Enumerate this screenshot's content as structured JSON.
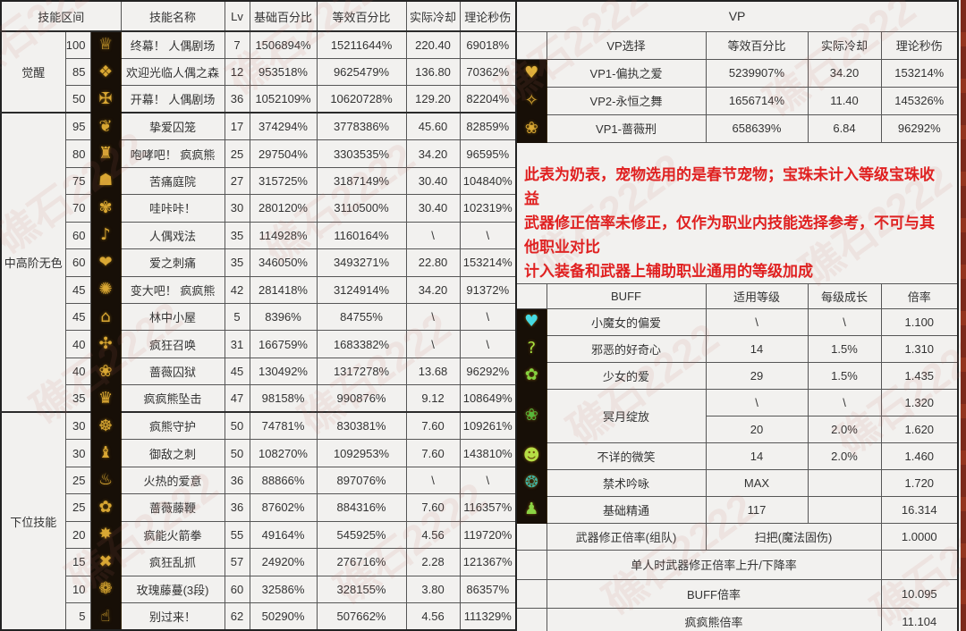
{
  "colors": {
    "accent_red": "#e02020",
    "icon_gold": "#d9a733",
    "table_line": "#565656",
    "icon_bg": "#170f07",
    "edge_watermark_red": "#7c2a1c"
  },
  "watermark": {
    "text": "礁石2222"
  },
  "left_table": {
    "headers": [
      "技能区间",
      "技能名称",
      "Lv",
      "基础百分比",
      "等效百分比",
      "实际冷却",
      "理论秒伤"
    ],
    "groups": [
      {
        "label": "觉醒",
        "rows": [
          {
            "range": "100",
            "icon": "♕",
            "name": "终幕！ 人偶剧场",
            "lv": "7",
            "base": "1506894%",
            "equiv": "15211644%",
            "cd": "220.40",
            "dps": "69018%"
          },
          {
            "range": "85",
            "icon": "❖",
            "name": "欢迎光临人偶之森",
            "lv": "12",
            "base": "953518%",
            "equiv": "9625479%",
            "cd": "136.80",
            "dps": "70362%"
          },
          {
            "range": "50",
            "icon": "✠",
            "name": "开幕！ 人偶剧场",
            "lv": "36",
            "base": "1052109%",
            "equiv": "10620728%",
            "cd": "129.20",
            "dps": "82204%"
          }
        ]
      },
      {
        "label": "中高阶无色",
        "rows": [
          {
            "range": "95",
            "icon": "❦",
            "name": "挚爱囚笼",
            "lv": "17",
            "base": "374294%",
            "equiv": "3778386%",
            "cd": "45.60",
            "dps": "82859%"
          },
          {
            "range": "80",
            "icon": "♜",
            "name": "咆哮吧！ 疯疯熊",
            "lv": "25",
            "base": "297504%",
            "equiv": "3303535%",
            "cd": "34.20",
            "dps": "96595%"
          },
          {
            "range": "75",
            "icon": "☗",
            "name": "苦痛庭院",
            "lv": "27",
            "base": "315725%",
            "equiv": "3187149%",
            "cd": "30.40",
            "dps": "104840%"
          },
          {
            "range": "70",
            "icon": "✾",
            "name": "哇咔咔！",
            "lv": "30",
            "base": "280120%",
            "equiv": "3110500%",
            "cd": "30.40",
            "dps": "102319%"
          },
          {
            "range": "60",
            "icon": "♪",
            "name": "人偶戏法",
            "lv": "35",
            "base": "114928%",
            "equiv": "1160164%",
            "cd": "\\",
            "dps": "\\"
          },
          {
            "range": "60",
            "icon": "❤",
            "name": "爱之刺痛",
            "lv": "35",
            "base": "346050%",
            "equiv": "3493271%",
            "cd": "22.80",
            "dps": "153214%"
          },
          {
            "range": "45",
            "icon": "✺",
            "name": "变大吧！ 疯疯熊",
            "lv": "42",
            "base": "281418%",
            "equiv": "3124914%",
            "cd": "34.20",
            "dps": "91372%"
          },
          {
            "range": "45",
            "icon": "⌂",
            "name": "林中小屋",
            "lv": "5",
            "base": "8396%",
            "equiv": "84755%",
            "cd": "\\",
            "dps": "\\"
          },
          {
            "range": "40",
            "icon": "✣",
            "name": "疯狂召唤",
            "lv": "31",
            "base": "166759%",
            "equiv": "1683382%",
            "cd": "\\",
            "dps": "\\"
          },
          {
            "range": "40",
            "icon": "❀",
            "name": "蔷薇囚狱",
            "lv": "45",
            "base": "130492%",
            "equiv": "1317278%",
            "cd": "13.68",
            "dps": "96292%"
          },
          {
            "range": "35",
            "icon": "♛",
            "name": "疯疯熊坠击",
            "lv": "47",
            "base": "98158%",
            "equiv": "990876%",
            "cd": "9.12",
            "dps": "108649%"
          }
        ]
      },
      {
        "label": "下位技能",
        "rows": [
          {
            "range": "30",
            "icon": "☸",
            "name": "疯熊守护",
            "lv": "50",
            "base": "74781%",
            "equiv": "830381%",
            "cd": "7.60",
            "dps": "109261%"
          },
          {
            "range": "30",
            "icon": "♝",
            "name": "御敌之刺",
            "lv": "50",
            "base": "108270%",
            "equiv": "1092953%",
            "cd": "7.60",
            "dps": "143810%"
          },
          {
            "range": "25",
            "icon": "♨",
            "name": "火热的爱意",
            "lv": "36",
            "base": "88866%",
            "equiv": "897076%",
            "cd": "\\",
            "dps": "\\"
          },
          {
            "range": "25",
            "icon": "✿",
            "name": "蔷薇藤鞭",
            "lv": "36",
            "base": "87602%",
            "equiv": "884316%",
            "cd": "7.60",
            "dps": "116357%"
          },
          {
            "range": "20",
            "icon": "✸",
            "name": "疯能火箭拳",
            "lv": "55",
            "base": "49164%",
            "equiv": "545925%",
            "cd": "4.56",
            "dps": "119720%"
          },
          {
            "range": "15",
            "icon": "✖",
            "name": "疯狂乱抓",
            "lv": "57",
            "base": "24920%",
            "equiv": "276716%",
            "cd": "2.28",
            "dps": "121367%"
          },
          {
            "range": "10",
            "icon": "❁",
            "name": "玫瑰藤蔓(3段)",
            "lv": "60",
            "base": "32586%",
            "equiv": "328155%",
            "cd": "3.80",
            "dps": "86357%"
          },
          {
            "range": "5",
            "icon": "☝",
            "name": "别过来！",
            "lv": "62",
            "base": "50290%",
            "equiv": "507662%",
            "cd": "4.56",
            "dps": "111329%"
          }
        ]
      }
    ]
  },
  "vp_table": {
    "title": "VP",
    "headers": [
      "VP选择",
      "等效百分比",
      "实际冷却",
      "理论秒伤"
    ],
    "rows": [
      {
        "icon": "♥",
        "icon_color": "#e0b23a",
        "name": "VP1-偏执之爱",
        "equiv": "5239907%",
        "cd": "34.20",
        "dps": "153214%"
      },
      {
        "icon": "✧",
        "icon_color": "#d9a733",
        "name": "VP2-永恒之舞",
        "equiv": "1656714%",
        "cd": "11.40",
        "dps": "145326%"
      },
      {
        "icon": "❀",
        "icon_color": "#d9a733",
        "name": "VP1-蔷薇刑",
        "equiv": "658639%",
        "cd": "6.84",
        "dps": "96292%"
      }
    ]
  },
  "notes": {
    "lines": [
      "此表为奶表，宠物选用的是春节宠物；宝珠未计入等级宝珠收益",
      "武器修正倍率未修正，仅作为职业内技能选择参考，不可与其他职业对比",
      "计入装备和武器上辅助职业通用的等级加成"
    ]
  },
  "buff_table": {
    "headers": [
      "BUFF",
      "适用等级",
      "每级成长",
      "倍率"
    ],
    "rows": [
      {
        "icon": "♥",
        "icon_color": "#45d9e2",
        "name": "小魔女的偏爱",
        "level": "\\",
        "growth": "\\",
        "rate": "1.100"
      },
      {
        "icon": "?",
        "icon_color": "#a6e23e",
        "name": "邪恶的好奇心",
        "level": "14",
        "growth": "1.5%",
        "rate": "1.310"
      },
      {
        "icon": "✿",
        "icon_color": "#84d23f",
        "name": "少女的爱",
        "level": "29",
        "growth": "1.5%",
        "rate": "1.435"
      },
      {
        "icon": "❀",
        "icon_color": "#57b83b",
        "name": "冥月绽放",
        "sub": [
          {
            "level": "\\",
            "growth": "\\",
            "rate": "1.320"
          },
          {
            "level": "20",
            "growth": "2.0%",
            "rate": "1.620"
          }
        ]
      },
      {
        "icon": "☻",
        "icon_color": "#b6dd45",
        "name": "不详的微笑",
        "level": "14",
        "growth": "2.0%",
        "rate": "1.460"
      },
      {
        "icon": "❂",
        "icon_color": "#3fb4a3",
        "name": "禁术吟咏",
        "level": "MAX",
        "growth": "",
        "rate": "1.720"
      },
      {
        "icon": "♟",
        "icon_color": "#8bd344",
        "name": "基础精通",
        "level": "117",
        "growth": "",
        "rate": "16.314"
      }
    ],
    "special_rows": [
      {
        "label": "武器修正倍率(组队)",
        "mid": "扫把(魔法固伤)",
        "rate": "1.0000"
      },
      {
        "label": "单人时武器修正倍率上升/下降率",
        "rate": ""
      },
      {
        "label": "BUFF倍率",
        "rate": "10.095"
      },
      {
        "label": "疯疯熊倍率",
        "rate": "11.104"
      }
    ]
  }
}
